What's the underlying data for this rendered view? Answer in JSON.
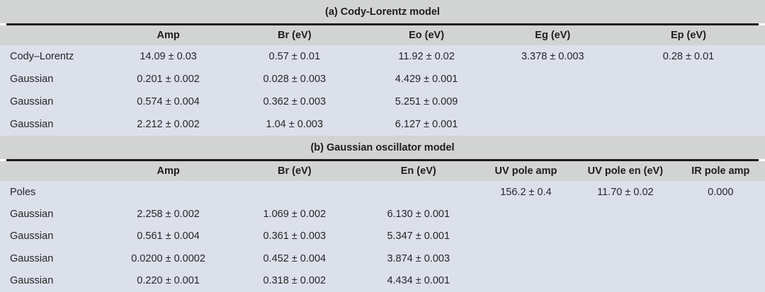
{
  "colors": {
    "band_bg": "#d2d3d3",
    "data_bg": "#dce0eb",
    "rule": "#1b1b1b",
    "text": "#262626"
  },
  "tables": [
    {
      "title": "(a) Cody-Lorentz model",
      "columns": [
        "",
        "Amp",
        "Br (eV)",
        "Eo (eV)",
        "Eg (eV)",
        "Ep (eV)"
      ],
      "rows": [
        [
          "Cody–Lorentz",
          "14.09 ± 0.03",
          "0.57 ± 0.01",
          "11.92 ± 0.02",
          "3.378 ± 0.003",
          "0.28 ± 0.01"
        ],
        [
          "Gaussian",
          "0.201 ± 0.002",
          "0.028 ± 0.003",
          "4.429 ± 0.001",
          "",
          ""
        ],
        [
          "Gaussian",
          "0.574 ± 0.004",
          "0.362 ± 0.003",
          "5.251 ± 0.009",
          "",
          ""
        ],
        [
          "Gaussian",
          "2.212 ± 0.002",
          "1.04 ± 0.003",
          "6.127 ± 0.001",
          "",
          ""
        ]
      ]
    },
    {
      "title": "(b) Gaussian oscillator model",
      "columns": [
        "",
        "Amp",
        "Br (eV)",
        "En (eV)",
        "UV pole amp",
        "UV pole en (eV)",
        "IR pole amp"
      ],
      "rows": [
        [
          "Poles",
          "",
          "",
          "",
          "156.2 ± 0.4",
          "11.70 ± 0.02",
          "0.000"
        ],
        [
          "Gaussian",
          "2.258 ± 0.002",
          "1.069 ± 0.002",
          "6.130 ± 0.001",
          "",
          "",
          ""
        ],
        [
          "Gaussian",
          "0.561 ± 0.004",
          "0.361 ± 0.003",
          "5.347 ± 0.001",
          "",
          "",
          ""
        ],
        [
          "Gaussian",
          "0.0200 ± 0.0002",
          "0.452 ± 0.004",
          "3.874 ± 0.003",
          "",
          "",
          ""
        ],
        [
          "Gaussian",
          "0.220 ± 0.001",
          "0.318 ± 0.002",
          "4.434 ± 0.001",
          "",
          "",
          ""
        ]
      ]
    }
  ]
}
